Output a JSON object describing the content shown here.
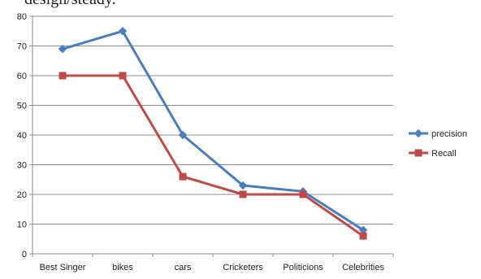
{
  "page": {
    "cropped_text": "design/steady."
  },
  "chart_data": {
    "type": "line",
    "categories": [
      "Best Singer",
      "bikes",
      "cars",
      "Cricketers",
      "Politicions",
      "Celebrities"
    ],
    "series": [
      {
        "name": "precision",
        "values": [
          69,
          75,
          40,
          23,
          21,
          8
        ],
        "color": "#4a7ebb",
        "marker": "diamond"
      },
      {
        "name": "Recall",
        "values": [
          60,
          60,
          26,
          20,
          20,
          6
        ],
        "color": "#be4b48",
        "marker": "square"
      }
    ],
    "ylim": [
      0,
      80
    ],
    "yticks": [
      0,
      10,
      20,
      30,
      40,
      50,
      60,
      70,
      80
    ],
    "grid": true,
    "legend": "right",
    "title": "",
    "xlabel": "",
    "ylabel": ""
  }
}
